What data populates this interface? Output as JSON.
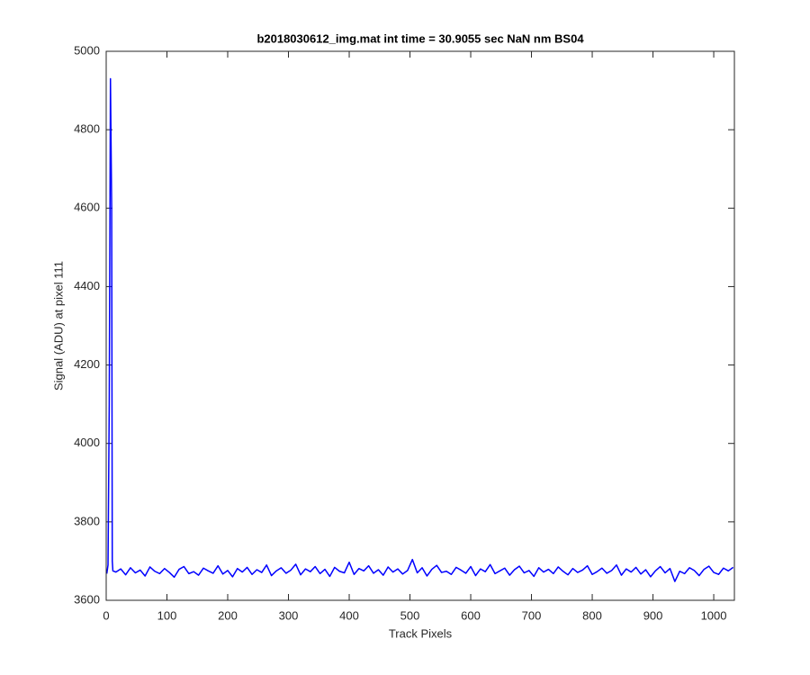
{
  "chart_data": {
    "type": "line",
    "title": "b2018030612_img.mat int time = 30.9055 sec  NaN nm BS04",
    "xlabel": "Track Pixels",
    "ylabel": "Signal (ADU) at pixel 111",
    "xlim": [
      0,
      1034
    ],
    "ylim": [
      3600,
      5000
    ],
    "xticks": [
      0,
      100,
      200,
      300,
      400,
      500,
      600,
      700,
      800,
      900,
      1000
    ],
    "yticks": [
      3600,
      3800,
      4000,
      4200,
      4400,
      4600,
      4800,
      5000
    ],
    "grid": false,
    "series": [
      {
        "color": "#0000ff",
        "x": [
          1,
          3,
          5,
          7,
          9,
          10,
          11,
          16,
          24,
          32,
          40,
          48,
          56,
          64,
          72,
          80,
          88,
          96,
          104,
          112,
          120,
          128,
          136,
          144,
          152,
          160,
          168,
          176,
          184,
          192,
          200,
          208,
          216,
          224,
          232,
          240,
          248,
          256,
          264,
          272,
          280,
          288,
          296,
          304,
          312,
          320,
          328,
          336,
          344,
          352,
          360,
          368,
          376,
          384,
          392,
          400,
          408,
          416,
          424,
          432,
          440,
          448,
          456,
          464,
          472,
          480,
          488,
          496,
          504,
          512,
          520,
          528,
          536,
          544,
          552,
          560,
          568,
          576,
          584,
          592,
          600,
          608,
          616,
          624,
          632,
          640,
          648,
          656,
          664,
          672,
          680,
          688,
          696,
          704,
          712,
          720,
          728,
          736,
          744,
          752,
          760,
          768,
          776,
          784,
          792,
          800,
          808,
          816,
          824,
          832,
          840,
          848,
          856,
          864,
          872,
          880,
          888,
          896,
          904,
          912,
          920,
          928,
          936,
          944,
          952,
          960,
          968,
          976,
          984,
          992,
          1000,
          1008,
          1016,
          1024,
          1032
        ],
        "values": [
          3668,
          3690,
          4100,
          4930,
          4600,
          3700,
          3675,
          3672,
          3680,
          3665,
          3683,
          3670,
          3677,
          3662,
          3685,
          3674,
          3668,
          3681,
          3671,
          3659,
          3679,
          3686,
          3668,
          3673,
          3664,
          3682,
          3675,
          3669,
          3688,
          3667,
          3676,
          3660,
          3681,
          3672,
          3684,
          3666,
          3678,
          3671,
          3690,
          3663,
          3675,
          3683,
          3669,
          3677,
          3692,
          3665,
          3680,
          3673,
          3686,
          3668,
          3679,
          3661,
          3684,
          3674,
          3670,
          3697,
          3666,
          3681,
          3675,
          3688,
          3669,
          3678,
          3664,
          3685,
          3672,
          3680,
          3667,
          3676,
          3704,
          3670,
          3683,
          3662,
          3679,
          3689,
          3671,
          3674,
          3666,
          3684,
          3677,
          3669,
          3686,
          3663,
          3680,
          3673,
          3691,
          3668,
          3675,
          3682,
          3664,
          3678,
          3687,
          3670,
          3676,
          3661,
          3683,
          3672,
          3679,
          3668,
          3685,
          3674,
          3665,
          3681,
          3671,
          3677,
          3688,
          3666,
          3673,
          3682,
          3669,
          3676,
          3690,
          3664,
          3680,
          3672,
          3684,
          3667,
          3678,
          3660,
          3675,
          3686,
          3670,
          3681,
          3648,
          3674,
          3668,
          3683,
          3676,
          3663,
          3679,
          3687,
          3671,
          3666,
          3682,
          3675,
          3684
        ]
      }
    ]
  }
}
